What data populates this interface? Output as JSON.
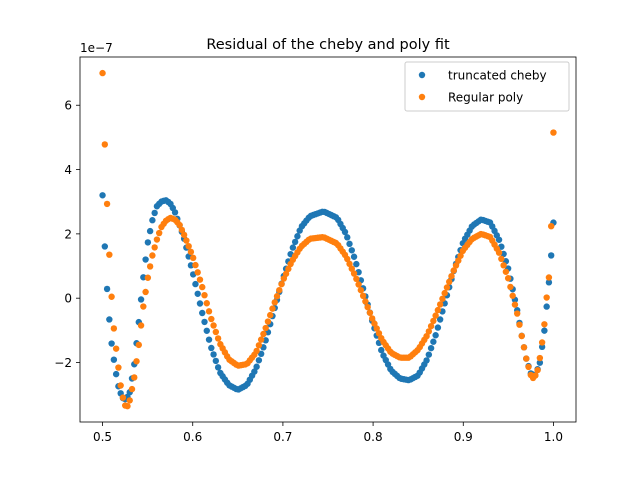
{
  "chart_data": {
    "type": "scatter",
    "title": "Residual of the cheby and poly fit",
    "xlabel": "",
    "ylabel": "",
    "offset_label": "1e−7",
    "xlim": [
      0.475,
      1.025
    ],
    "ylim": [
      -3.85,
      7.5
    ],
    "x_ticks": [
      0.5,
      0.6,
      0.7,
      0.8,
      0.9,
      1.0
    ],
    "x_tick_labels": [
      "0.5",
      "0.6",
      "0.7",
      "0.8",
      "0.9",
      "1.0"
    ],
    "y_ticks": [
      -2,
      0,
      2,
      4,
      6
    ],
    "y_tick_labels": [
      "−2",
      "0",
      "2",
      "4",
      "6"
    ],
    "grid": false,
    "legend_position": "top-right",
    "series": [
      {
        "name": "truncated cheby",
        "color": "#1f77b4",
        "anchors": [
          [
            0.5,
            3.2
          ],
          [
            0.503,
            1.3
          ],
          [
            0.506,
            -0.2
          ],
          [
            0.51,
            -1.4
          ],
          [
            0.514,
            -2.2
          ],
          [
            0.518,
            -2.8
          ],
          [
            0.522,
            -3.1
          ],
          [
            0.526,
            -3.15
          ],
          [
            0.53,
            -2.95
          ],
          [
            0.535,
            -2.1
          ],
          [
            0.54,
            -0.8
          ],
          [
            0.545,
            0.6
          ],
          [
            0.55,
            1.7
          ],
          [
            0.555,
            2.4
          ],
          [
            0.56,
            2.85
          ],
          [
            0.565,
            3.0
          ],
          [
            0.57,
            3.05
          ],
          [
            0.575,
            2.95
          ],
          [
            0.58,
            2.7
          ],
          [
            0.59,
            1.9
          ],
          [
            0.6,
            0.8
          ],
          [
            0.61,
            -0.4
          ],
          [
            0.62,
            -1.5
          ],
          [
            0.63,
            -2.3
          ],
          [
            0.64,
            -2.7
          ],
          [
            0.65,
            -2.85
          ],
          [
            0.66,
            -2.7
          ],
          [
            0.67,
            -2.2
          ],
          [
            0.68,
            -1.4
          ],
          [
            0.69,
            -0.4
          ],
          [
            0.7,
            0.6
          ],
          [
            0.71,
            1.5
          ],
          [
            0.72,
            2.2
          ],
          [
            0.73,
            2.55
          ],
          [
            0.745,
            2.7
          ],
          [
            0.76,
            2.5
          ],
          [
            0.77,
            2.0
          ],
          [
            0.78,
            1.2
          ],
          [
            0.79,
            0.2
          ],
          [
            0.8,
            -0.8
          ],
          [
            0.81,
            -1.7
          ],
          [
            0.82,
            -2.25
          ],
          [
            0.83,
            -2.5
          ],
          [
            0.84,
            -2.55
          ],
          [
            0.85,
            -2.4
          ],
          [
            0.86,
            -1.9
          ],
          [
            0.87,
            -1.1
          ],
          [
            0.88,
            -0.1
          ],
          [
            0.89,
            0.9
          ],
          [
            0.9,
            1.75
          ],
          [
            0.91,
            2.25
          ],
          [
            0.92,
            2.45
          ],
          [
            0.93,
            2.35
          ],
          [
            0.94,
            1.8
          ],
          [
            0.95,
            0.9
          ],
          [
            0.96,
            -0.4
          ],
          [
            0.965,
            -1.2
          ],
          [
            0.97,
            -1.9
          ],
          [
            0.975,
            -2.35
          ],
          [
            0.98,
            -2.4
          ],
          [
            0.985,
            -2.0
          ],
          [
            0.99,
            -1.0
          ],
          [
            0.995,
            0.5
          ],
          [
            0.998,
            1.5
          ],
          [
            1.0,
            2.35
          ]
        ]
      },
      {
        "name": "Regular poly",
        "color": "#ff7f0e",
        "anchors": [
          [
            0.5,
            7.0
          ],
          [
            0.503,
            4.35
          ],
          [
            0.506,
            2.25
          ],
          [
            0.509,
            0.5
          ],
          [
            0.512,
            -0.8
          ],
          [
            0.516,
            -1.8
          ],
          [
            0.52,
            -2.7
          ],
          [
            0.524,
            -3.3
          ],
          [
            0.527,
            -3.4
          ],
          [
            0.53,
            -3.2
          ],
          [
            0.535,
            -2.5
          ],
          [
            0.54,
            -1.5
          ],
          [
            0.545,
            -0.3
          ],
          [
            0.55,
            0.6
          ],
          [
            0.555,
            1.3
          ],
          [
            0.56,
            1.8
          ],
          [
            0.565,
            2.2
          ],
          [
            0.57,
            2.4
          ],
          [
            0.575,
            2.5
          ],
          [
            0.58,
            2.45
          ],
          [
            0.585,
            2.3
          ],
          [
            0.59,
            2.0
          ],
          [
            0.6,
            1.3
          ],
          [
            0.61,
            0.4
          ],
          [
            0.62,
            -0.6
          ],
          [
            0.63,
            -1.4
          ],
          [
            0.64,
            -1.9
          ],
          [
            0.65,
            -2.1
          ],
          [
            0.66,
            -2.05
          ],
          [
            0.67,
            -1.7
          ],
          [
            0.68,
            -1.0
          ],
          [
            0.69,
            -0.2
          ],
          [
            0.7,
            0.55
          ],
          [
            0.71,
            1.15
          ],
          [
            0.72,
            1.6
          ],
          [
            0.73,
            1.85
          ],
          [
            0.745,
            1.9
          ],
          [
            0.76,
            1.7
          ],
          [
            0.77,
            1.3
          ],
          [
            0.78,
            0.7
          ],
          [
            0.79,
            0.0
          ],
          [
            0.8,
            -0.7
          ],
          [
            0.81,
            -1.3
          ],
          [
            0.82,
            -1.7
          ],
          [
            0.83,
            -1.85
          ],
          [
            0.84,
            -1.85
          ],
          [
            0.85,
            -1.6
          ],
          [
            0.86,
            -1.15
          ],
          [
            0.87,
            -0.5
          ],
          [
            0.88,
            0.2
          ],
          [
            0.89,
            0.9
          ],
          [
            0.9,
            1.5
          ],
          [
            0.91,
            1.85
          ],
          [
            0.92,
            2.0
          ],
          [
            0.93,
            1.9
          ],
          [
            0.94,
            1.4
          ],
          [
            0.95,
            0.6
          ],
          [
            0.96,
            -0.5
          ],
          [
            0.965,
            -1.2
          ],
          [
            0.97,
            -1.9
          ],
          [
            0.975,
            -2.4
          ],
          [
            0.978,
            -2.5
          ],
          [
            0.982,
            -2.3
          ],
          [
            0.986,
            -1.7
          ],
          [
            0.99,
            -0.8
          ],
          [
            0.993,
            0.2
          ],
          [
            0.995,
            0.65
          ],
          [
            0.997,
            1.8
          ],
          [
            0.998,
            2.7
          ],
          [
            0.999,
            3.35
          ],
          [
            1.0,
            5.15
          ]
        ]
      }
    ]
  }
}
